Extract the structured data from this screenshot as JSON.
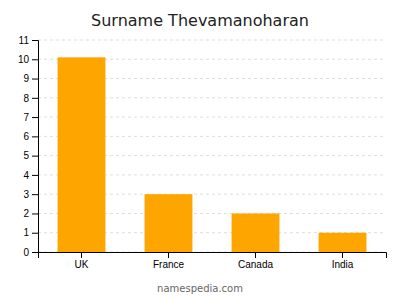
{
  "chart_data": {
    "type": "bar",
    "title": "Surname Thevamanoharan",
    "categories": [
      "UK",
      "France",
      "Canada",
      "India"
    ],
    "values": [
      10.1,
      3.0,
      2.0,
      1.0
    ],
    "color": "#FFA500",
    "ylim": [
      0,
      11
    ],
    "yticks": [
      0,
      1,
      2,
      3,
      4,
      5,
      6,
      7,
      8,
      9,
      10,
      11
    ],
    "grid": true,
    "annotations": [
      "namespedia.com"
    ]
  }
}
